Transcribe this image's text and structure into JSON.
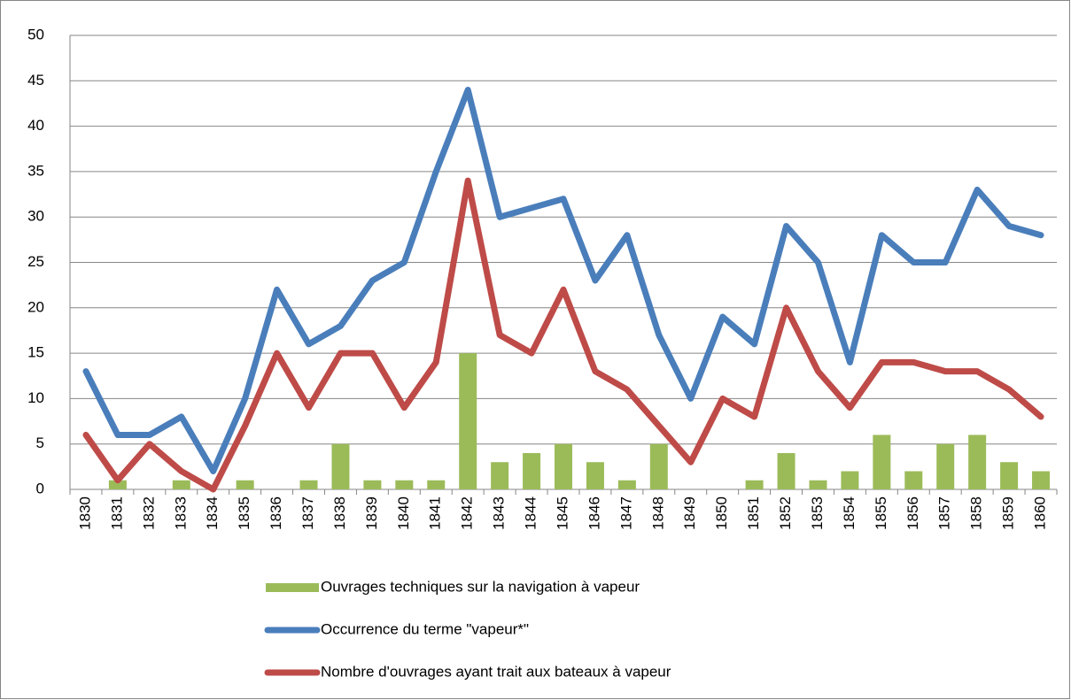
{
  "chart_data": {
    "type": "combo",
    "categories": [
      "1830",
      "1831",
      "1832",
      "1833",
      "1834",
      "1835",
      "1836",
      "1837",
      "1838",
      "1839",
      "1840",
      "1841",
      "1842",
      "1843",
      "1844",
      "1845",
      "1846",
      "1847",
      "1848",
      "1849",
      "1850",
      "1851",
      "1852",
      "1853",
      "1854",
      "1855",
      "1856",
      "1857",
      "1858",
      "1859",
      "1860"
    ],
    "series": [
      {
        "name": "Ouvrages techniques sur la navigation à vapeur",
        "type": "bar",
        "color": "#9bbb59",
        "values": [
          0,
          1,
          0,
          1,
          0,
          1,
          0,
          1,
          5,
          1,
          1,
          1,
          15,
          3,
          4,
          5,
          3,
          1,
          5,
          0,
          0,
          1,
          4,
          1,
          2,
          6,
          2,
          5,
          6,
          3,
          2
        ]
      },
      {
        "name": "Occurrence du terme \"vapeur*\"",
        "type": "line",
        "color": "#4a7ebb",
        "values": [
          13,
          6,
          6,
          8,
          2,
          10,
          22,
          16,
          18,
          23,
          25,
          35,
          44,
          30,
          31,
          32,
          23,
          28,
          17,
          10,
          19,
          16,
          29,
          25,
          14,
          28,
          25,
          25,
          33,
          29,
          28
        ]
      },
      {
        "name": "Nombre d'ouvrages ayant trait aux bateaux à vapeur",
        "type": "line",
        "color": "#be4b48",
        "values": [
          6,
          1,
          5,
          2,
          0,
          7,
          15,
          9,
          15,
          15,
          9,
          14,
          34,
          17,
          15,
          22,
          13,
          11,
          7,
          3,
          10,
          8,
          20,
          13,
          9,
          14,
          14,
          13,
          13,
          11,
          8
        ]
      }
    ],
    "ylim": [
      0,
      50
    ],
    "yticks": [
      0,
      5,
      10,
      15,
      20,
      25,
      30,
      35,
      40,
      45,
      50
    ],
    "grid": true,
    "legend": "bottom"
  }
}
